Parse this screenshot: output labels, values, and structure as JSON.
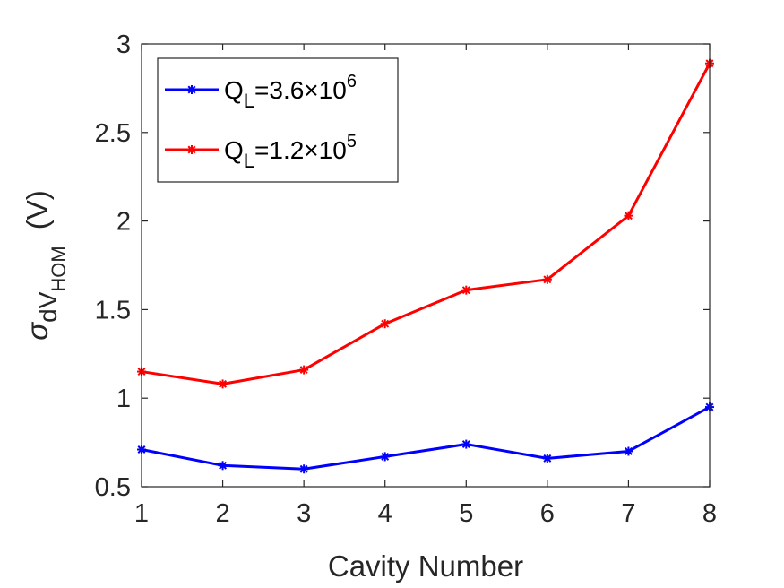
{
  "chart_data": {
    "type": "line",
    "title": "",
    "xlabel": "Cavity Number",
    "ylabel": {
      "sigma": "σ",
      "base": "dV",
      "sub": "HOM",
      "unit": "(V)"
    },
    "x": [
      1,
      2,
      3,
      4,
      5,
      6,
      7,
      8
    ],
    "xlim": [
      1,
      8
    ],
    "ylim": [
      0.5,
      3
    ],
    "xticks": [
      1,
      2,
      3,
      4,
      5,
      6,
      7,
      8
    ],
    "yticks": [
      0.5,
      1,
      1.5,
      2,
      2.5,
      3
    ],
    "ytick_labels": [
      "0.5",
      "1",
      "1.5",
      "2",
      "2.5",
      "3"
    ],
    "grid": false,
    "legend_position": "top-left",
    "series": [
      {
        "name": "Q_L=3.6×10^6",
        "legend": {
          "q": "Q",
          "sub": "L",
          "mid": "=3.6×10",
          "sup": "6"
        },
        "color": "#0000ff",
        "marker": "asterisk",
        "values": [
          0.71,
          0.62,
          0.6,
          0.67,
          0.74,
          0.66,
          0.7,
          0.95
        ]
      },
      {
        "name": "Q_L=1.2×10^5",
        "legend": {
          "q": "Q",
          "sub": "L",
          "mid": "=1.2×10",
          "sup": "5"
        },
        "color": "#ff0000",
        "marker": "asterisk",
        "values": [
          1.15,
          1.08,
          1.16,
          1.42,
          1.61,
          1.67,
          2.03,
          2.89
        ]
      }
    ]
  }
}
